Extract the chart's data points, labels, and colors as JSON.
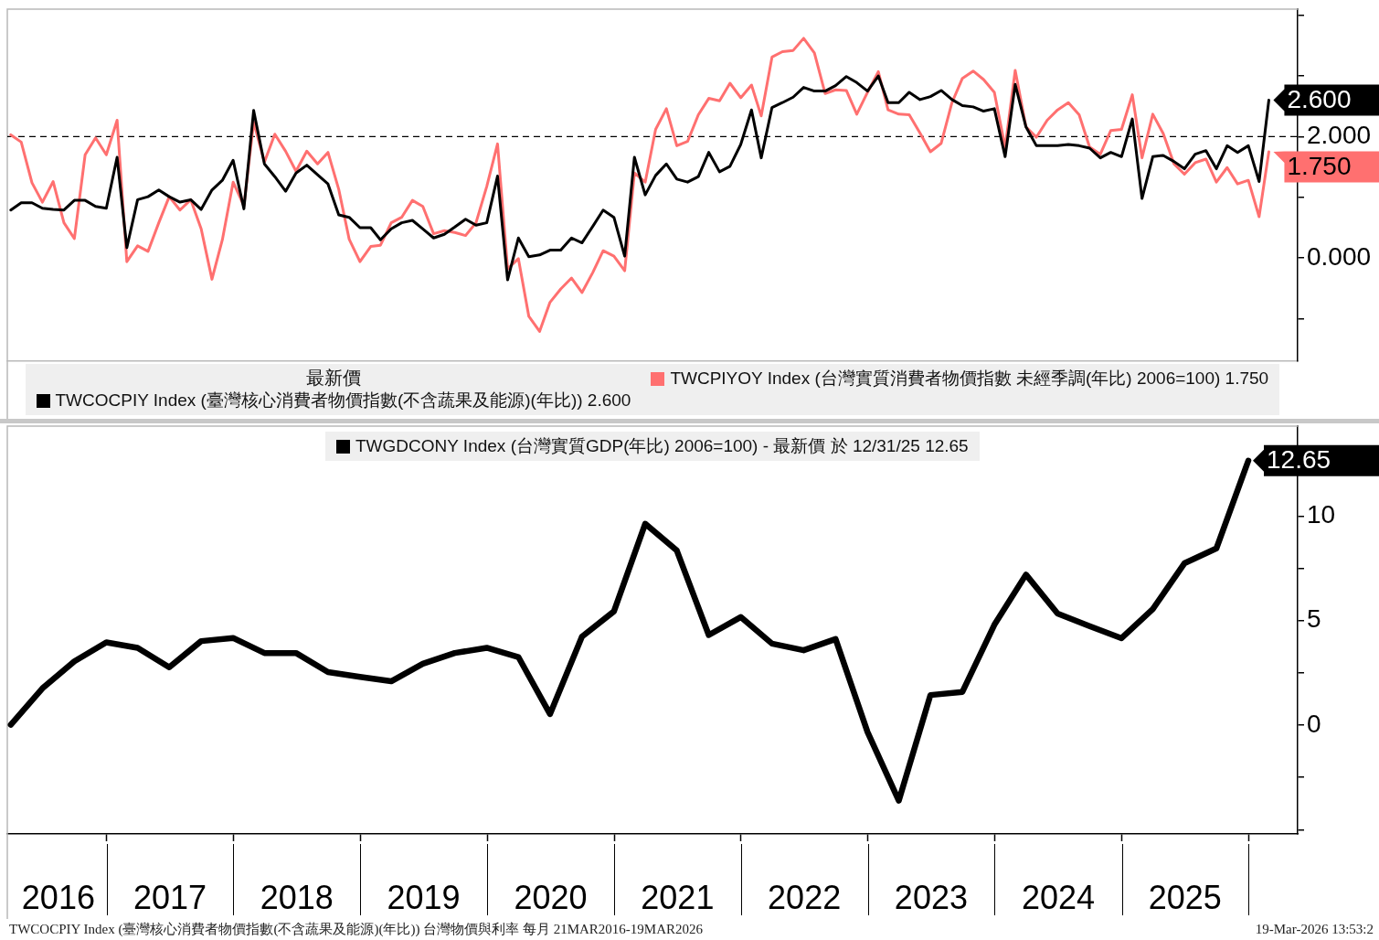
{
  "chart_data": [
    {
      "type": "line",
      "x": [
        "2016-03-31",
        "2016-04-30",
        "2016-05-31",
        "2016-06-30",
        "2016-07-31",
        "2016-08-31",
        "2016-09-30",
        "2016-10-31",
        "2016-11-30",
        "2016-12-31",
        "2017-01-31",
        "2017-02-28",
        "2017-03-31",
        "2017-04-30",
        "2017-05-31",
        "2017-06-30",
        "2017-07-31",
        "2017-08-31",
        "2017-09-30",
        "2017-10-31",
        "2017-11-30",
        "2017-12-31",
        "2018-01-31",
        "2018-02-28",
        "2018-03-31",
        "2018-04-30",
        "2018-05-31",
        "2018-06-30",
        "2018-07-31",
        "2018-08-31",
        "2018-09-30",
        "2018-10-31",
        "2018-11-30",
        "2018-12-31",
        "2019-01-31",
        "2019-02-28",
        "2019-03-31",
        "2019-04-30",
        "2019-05-31",
        "2019-06-30",
        "2019-07-31",
        "2019-08-31",
        "2019-09-30",
        "2019-10-31",
        "2019-11-30",
        "2019-12-31",
        "2020-01-31",
        "2020-02-29",
        "2020-03-31",
        "2020-04-30",
        "2020-05-31",
        "2020-06-30",
        "2020-07-31",
        "2020-08-31",
        "2020-09-30",
        "2020-10-31",
        "2020-11-30",
        "2020-12-31",
        "2021-01-31",
        "2021-02-28",
        "2021-03-31",
        "2021-04-30",
        "2021-05-31",
        "2021-06-30",
        "2021-07-31",
        "2021-08-31",
        "2021-09-30",
        "2021-10-31",
        "2021-11-30",
        "2021-12-31",
        "2022-01-31",
        "2022-02-28",
        "2022-03-31",
        "2022-04-30",
        "2022-05-31",
        "2022-06-30",
        "2022-07-31",
        "2022-08-31",
        "2022-09-30",
        "2022-10-31",
        "2022-11-30",
        "2022-12-31",
        "2023-01-31",
        "2023-02-28",
        "2023-03-31",
        "2023-04-30",
        "2023-05-31",
        "2023-06-30",
        "2023-07-31",
        "2023-08-31",
        "2023-09-30",
        "2023-10-31",
        "2023-11-30",
        "2023-12-31",
        "2024-01-31",
        "2024-02-29",
        "2024-03-31",
        "2024-04-30",
        "2024-05-31",
        "2024-06-30",
        "2024-07-31",
        "2024-08-31",
        "2024-09-30",
        "2024-10-31",
        "2024-11-30",
        "2024-12-31",
        "2025-01-31",
        "2025-02-28",
        "2025-03-31",
        "2025-04-30",
        "2025-05-31",
        "2025-06-30",
        "2025-07-31",
        "2025-08-31",
        "2025-09-30",
        "2025-10-31",
        "2025-11-30",
        "2025-12-31",
        "2026-01-31",
        "2026-02-28"
      ],
      "xlim": [
        "2016-03-21",
        "2026-05-22"
      ],
      "ylim": [
        -1.7,
        4.1
      ],
      "yticks": [
        {
          "value": -1,
          "label": null
        },
        {
          "value": 0,
          "label": "0.000"
        },
        {
          "value": 1,
          "label": null
        },
        {
          "value": 2,
          "label": "2.000"
        },
        {
          "value": 3,
          "label": null
        },
        {
          "value": 4,
          "label": null
        }
      ],
      "tick_labels": "y",
      "legend": "bottom",
      "legend_title": "最新價",
      "ref_lines": [
        {
          "axis": "y",
          "value": 2,
          "line_style": "dashed",
          "color": "#000000"
        }
      ],
      "series": [
        {
          "name": "TWCOCPIY Index (臺灣核心消費者物價指數(不含蔬果及能源)(年比)) 2.600",
          "color": "#000000",
          "values": [
            0.79,
            0.91,
            0.91,
            0.82,
            0.8,
            0.79,
            0.95,
            0.95,
            0.85,
            0.82,
            1.66,
            0.17,
            0.96,
            1.01,
            1.12,
            1.01,
            0.92,
            0.96,
            0.8,
            1.12,
            1.28,
            1.61,
            0.81,
            2.43,
            1.55,
            1.34,
            1.1,
            1.4,
            1.53,
            1.37,
            1.22,
            0.71,
            0.67,
            0.5,
            0.5,
            0.3,
            0.48,
            0.58,
            0.62,
            0.48,
            0.33,
            0.39,
            0.51,
            0.64,
            0.54,
            0.58,
            1.35,
            -0.36,
            0.33,
            0.02,
            0.05,
            0.13,
            0.13,
            0.33,
            0.25,
            0.52,
            0.79,
            0.67,
            0.03,
            1.66,
            1.04,
            1.36,
            1.55,
            1.3,
            1.25,
            1.34,
            1.74,
            1.42,
            1.51,
            1.87,
            2.44,
            1.65,
            2.48,
            2.56,
            2.65,
            2.81,
            2.75,
            2.75,
            2.84,
            2.99,
            2.89,
            2.75,
            3.0,
            2.56,
            2.56,
            2.73,
            2.61,
            2.66,
            2.76,
            2.61,
            2.51,
            2.49,
            2.42,
            2.46,
            1.67,
            2.86,
            2.16,
            1.85,
            1.85,
            1.85,
            1.87,
            1.85,
            1.81,
            1.65,
            1.74,
            1.67,
            2.29,
            0.98,
            1.67,
            1.69,
            1.59,
            1.47,
            1.71,
            1.77,
            1.47,
            1.85,
            1.74,
            1.85,
            1.26,
            2.6
          ],
          "value_labels": [
            null,
            null,
            null,
            null,
            null,
            null,
            null,
            null,
            null,
            null,
            null,
            null,
            null,
            null,
            null,
            null,
            null,
            null,
            null,
            null,
            null,
            null,
            null,
            null,
            null,
            null,
            null,
            null,
            null,
            null,
            null,
            null,
            null,
            null,
            null,
            null,
            null,
            null,
            null,
            null,
            null,
            null,
            null,
            null,
            null,
            null,
            null,
            null,
            null,
            null,
            null,
            null,
            null,
            null,
            null,
            null,
            null,
            null,
            null,
            null,
            null,
            null,
            null,
            null,
            null,
            null,
            null,
            null,
            null,
            null,
            null,
            null,
            null,
            null,
            null,
            null,
            null,
            null,
            null,
            null,
            null,
            null,
            null,
            null,
            null,
            null,
            null,
            null,
            null,
            null,
            null,
            null,
            null,
            null,
            null,
            null,
            null,
            null,
            null,
            null,
            null,
            null,
            null,
            null,
            null,
            null,
            null,
            null,
            null,
            null,
            null,
            null,
            null,
            null,
            null,
            null,
            null,
            null,
            null,
            "2.600"
          ]
        },
        {
          "name": "TWCPIYOY Index (台灣實質消費者物價指數 未經季調(年比) 2006=100) 1.750",
          "color": "#ff7070",
          "values": [
            2.03,
            1.91,
            1.24,
            0.92,
            1.26,
            0.58,
            0.32,
            1.7,
            1.98,
            1.7,
            2.27,
            -0.06,
            0.2,
            0.11,
            0.58,
            1.01,
            0.79,
            0.96,
            0.48,
            -0.35,
            0.3,
            1.25,
            0.86,
            2.24,
            1.58,
            2.04,
            1.76,
            1.43,
            1.76,
            1.55,
            1.74,
            1.13,
            0.31,
            -0.06,
            0.19,
            0.21,
            0.58,
            0.67,
            0.95,
            0.85,
            0.4,
            0.45,
            0.42,
            0.37,
            0.58,
            1.18,
            1.88,
            -0.18,
            -0.01,
            -0.96,
            -1.21,
            -0.73,
            -0.51,
            -0.33,
            -0.57,
            -0.24,
            0.12,
            0.03,
            -0.21,
            1.4,
            1.25,
            2.12,
            2.46,
            1.85,
            1.92,
            2.36,
            2.63,
            2.59,
            2.88,
            2.64,
            2.85,
            2.34,
            3.31,
            3.4,
            3.42,
            3.62,
            3.38,
            2.71,
            2.77,
            2.76,
            2.37,
            2.73,
            3.07,
            2.44,
            2.37,
            2.36,
            2.06,
            1.75,
            1.89,
            2.56,
            2.96,
            3.08,
            2.94,
            2.73,
            1.82,
            3.09,
            2.16,
            1.99,
            2.27,
            2.44,
            2.56,
            2.36,
            1.83,
            1.71,
            2.1,
            2.12,
            2.69,
            1.65,
            2.37,
            2.05,
            1.55,
            1.38,
            1.57,
            1.63,
            1.25,
            1.49,
            1.22,
            1.28,
            0.68,
            1.75
          ],
          "value_labels": [
            null,
            null,
            null,
            null,
            null,
            null,
            null,
            null,
            null,
            null,
            null,
            null,
            null,
            null,
            null,
            null,
            null,
            null,
            null,
            null,
            null,
            null,
            null,
            null,
            null,
            null,
            null,
            null,
            null,
            null,
            null,
            null,
            null,
            null,
            null,
            null,
            null,
            null,
            null,
            null,
            null,
            null,
            null,
            null,
            null,
            null,
            null,
            null,
            null,
            null,
            null,
            null,
            null,
            null,
            null,
            null,
            null,
            null,
            null,
            null,
            null,
            null,
            null,
            null,
            null,
            null,
            null,
            null,
            null,
            null,
            null,
            null,
            null,
            null,
            null,
            null,
            null,
            null,
            null,
            null,
            null,
            null,
            null,
            null,
            null,
            null,
            null,
            null,
            null,
            null,
            null,
            null,
            null,
            null,
            null,
            null,
            null,
            null,
            null,
            null,
            null,
            null,
            null,
            null,
            null,
            null,
            null,
            null,
            null,
            null,
            null,
            null,
            null,
            null,
            null,
            null,
            null,
            null,
            null,
            "1.750"
          ]
        }
      ]
    },
    {
      "type": "line",
      "x": [
        "2016-03-31",
        "2016-06-30",
        "2016-09-30",
        "2016-12-31",
        "2017-03-31",
        "2017-06-30",
        "2017-09-30",
        "2017-12-31",
        "2018-03-31",
        "2018-06-30",
        "2018-09-30",
        "2018-12-31",
        "2019-03-31",
        "2019-06-30",
        "2019-09-30",
        "2019-12-31",
        "2020-03-31",
        "2020-06-30",
        "2020-09-30",
        "2020-12-31",
        "2021-03-31",
        "2021-06-30",
        "2021-09-30",
        "2021-12-31",
        "2022-03-31",
        "2022-06-30",
        "2022-09-30",
        "2022-12-31",
        "2023-03-31",
        "2023-06-30",
        "2023-09-30",
        "2023-12-31",
        "2024-03-31",
        "2024-06-30",
        "2024-09-30",
        "2024-12-31",
        "2025-03-31",
        "2025-06-30",
        "2025-09-30",
        "2025-12-31"
      ],
      "xlim": [
        "2016-03-21",
        "2026-05-22"
      ],
      "xticks": [
        {
          "value": "2016-08-15",
          "label": "2016"
        },
        {
          "value": "2017-01-01",
          "label": null
        },
        {
          "value": "2017-07-02",
          "label": "2017"
        },
        {
          "value": "2018-01-01",
          "label": null
        },
        {
          "value": "2018-07-02",
          "label": "2018"
        },
        {
          "value": "2019-01-01",
          "label": null
        },
        {
          "value": "2019-07-02",
          "label": "2019"
        },
        {
          "value": "2020-01-01",
          "label": null
        },
        {
          "value": "2020-07-02",
          "label": "2020"
        },
        {
          "value": "2021-01-01",
          "label": null
        },
        {
          "value": "2021-07-02",
          "label": "2021"
        },
        {
          "value": "2022-01-01",
          "label": null
        },
        {
          "value": "2022-07-02",
          "label": "2022"
        },
        {
          "value": "2023-01-01",
          "label": null
        },
        {
          "value": "2023-07-02",
          "label": "2023"
        },
        {
          "value": "2024-01-01",
          "label": null
        },
        {
          "value": "2024-07-02",
          "label": "2024"
        },
        {
          "value": "2025-01-01",
          "label": null
        },
        {
          "value": "2025-07-02",
          "label": "2025"
        },
        {
          "value": "2026-01-01",
          "label": null
        }
      ],
      "ylim": [
        -5.2,
        14.3
      ],
      "yticks": [
        {
          "value": -5,
          "label": null
        },
        {
          "value": -2.5,
          "label": null
        },
        0,
        {
          "value": 2.5,
          "label": null
        },
        5,
        {
          "value": 7.5,
          "label": null
        },
        10
      ],
      "legend": "top",
      "series": [
        {
          "name": "TWGDCONY Index (台灣實質GDP(年比) 2006=100) - 最新價 於 12/31/25 12.65",
          "color": "#000000",
          "values": [
            0.02,
            1.76,
            3.05,
            3.96,
            3.7,
            2.77,
            4.02,
            4.17,
            3.45,
            3.45,
            2.54,
            2.31,
            2.1,
            2.94,
            3.45,
            3.7,
            3.26,
            0.53,
            4.23,
            5.44,
            9.63,
            8.35,
            4.31,
            5.17,
            3.9,
            3.58,
            4.12,
            -0.33,
            -3.61,
            1.44,
            1.59,
            4.8,
            7.2,
            5.34,
            4.74,
            4.16,
            5.55,
            7.74,
            8.45,
            12.65
          ],
          "value_labels": [
            null,
            null,
            null,
            null,
            null,
            null,
            null,
            null,
            null,
            null,
            null,
            null,
            null,
            null,
            null,
            null,
            null,
            null,
            null,
            null,
            null,
            null,
            null,
            null,
            null,
            null,
            null,
            null,
            null,
            null,
            null,
            null,
            null,
            null,
            null,
            null,
            null,
            null,
            null,
            "12.65"
          ]
        }
      ],
      "annotations": [
        "TWCOCPIY Index (臺灣核心消費者物價指數(不含蔬果及能源)(年比)) 台灣物價與利率 每月 21MAR2016-19MAR2026",
        "19-Mar-2026 13:53:2"
      ]
    }
  ]
}
